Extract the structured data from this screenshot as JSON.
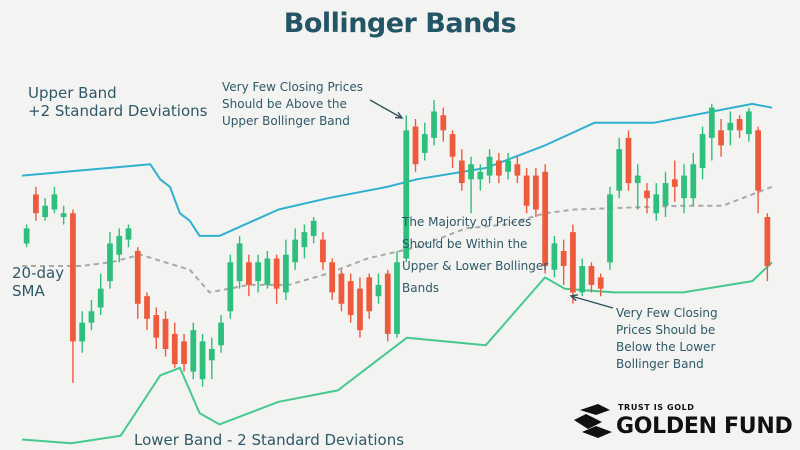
{
  "title": "Bollinger Bands",
  "labels": {
    "upper_line1": "Upper Band",
    "upper_line2": "+2 Standard Deviations",
    "sma_line1": "20-day",
    "sma_line2": "SMA",
    "lower": "Lower Band - 2 Standard Deviations"
  },
  "annotations": {
    "top": [
      "Very Few Closing Prices",
      "Should be Above the",
      "Upper Bollinger Band"
    ],
    "middle": [
      "The Majority of Prices",
      "Should be Within the",
      "Upper & Lower Bollinger",
      "Bands"
    ],
    "bottom": [
      "Very Few Closing",
      "Prices Should be",
      "Below the Lower",
      "Bollinger Band"
    ]
  },
  "logo": {
    "tagline": "TRUST IS GOLD",
    "name": "GOLDEN FUND"
  },
  "colors": {
    "up": "#2dbf7b",
    "down": "#ee5a3c",
    "upper_band": "#2fb0cf",
    "lower_band": "#45c98d",
    "sma": "#a8a8a8",
    "text": "#2f5968",
    "title": "#245566"
  },
  "chart_data": {
    "type": "candlestick",
    "ylim": [
      0,
      100
    ],
    "xlim": [
      0,
      76
    ],
    "upper_band": [
      [
        0,
        72
      ],
      [
        13,
        75
      ],
      [
        14,
        71
      ],
      [
        15,
        69
      ],
      [
        16,
        62
      ],
      [
        17,
        60
      ],
      [
        18,
        56
      ],
      [
        20,
        56
      ],
      [
        26,
        63
      ],
      [
        31,
        66
      ],
      [
        37,
        69
      ],
      [
        40,
        71
      ],
      [
        47,
        74
      ],
      [
        48,
        75
      ],
      [
        53,
        80
      ],
      [
        58,
        86
      ],
      [
        64,
        86
      ],
      [
        74,
        91
      ],
      [
        76,
        90
      ]
    ],
    "lower_band": [
      [
        0,
        2
      ],
      [
        5,
        1
      ],
      [
        10,
        3
      ],
      [
        14,
        19
      ],
      [
        16,
        21
      ],
      [
        18,
        9
      ],
      [
        20,
        6
      ],
      [
        26,
        12
      ],
      [
        32,
        15
      ],
      [
        39,
        29
      ],
      [
        47,
        27
      ],
      [
        53,
        45
      ],
      [
        55,
        42
      ],
      [
        60,
        41
      ],
      [
        67,
        41
      ],
      [
        74,
        44
      ],
      [
        76,
        49
      ]
    ],
    "sma": [
      [
        0,
        48
      ],
      [
        6,
        48
      ],
      [
        9,
        49
      ],
      [
        12,
        51
      ],
      [
        17,
        47
      ],
      [
        19,
        41
      ],
      [
        23,
        43
      ],
      [
        27,
        43
      ],
      [
        31,
        46
      ],
      [
        35,
        50
      ],
      [
        40,
        53
      ],
      [
        45,
        58
      ],
      [
        49,
        59
      ],
      [
        53,
        62
      ],
      [
        56,
        63
      ],
      [
        67,
        64
      ],
      [
        71,
        64
      ],
      [
        73,
        66
      ],
      [
        76,
        69
      ]
    ],
    "candles": [
      {
        "o": 54,
        "c": 58,
        "h": 59,
        "l": 53
      },
      {
        "o": 67,
        "c": 62,
        "h": 69,
        "l": 60
      },
      {
        "o": 61,
        "c": 64,
        "h": 66,
        "l": 60
      },
      {
        "o": 63,
        "c": 67,
        "h": 69,
        "l": 62
      },
      {
        "o": 61,
        "c": 62,
        "h": 64,
        "l": 59
      },
      {
        "o": 62,
        "c": 28,
        "h": 63,
        "l": 17
      },
      {
        "o": 28,
        "c": 33,
        "h": 36,
        "l": 25
      },
      {
        "o": 33,
        "c": 36,
        "h": 39,
        "l": 31
      },
      {
        "o": 37,
        "c": 42,
        "h": 46,
        "l": 35
      },
      {
        "o": 44,
        "c": 54,
        "h": 57,
        "l": 42
      },
      {
        "o": 51,
        "c": 56,
        "h": 58,
        "l": 49
      },
      {
        "o": 55,
        "c": 58,
        "h": 59,
        "l": 53
      },
      {
        "o": 52,
        "c": 38,
        "h": 53,
        "l": 34
      },
      {
        "o": 40,
        "c": 34,
        "h": 41,
        "l": 31
      },
      {
        "o": 35,
        "c": 29,
        "h": 37,
        "l": 26
      },
      {
        "o": 34,
        "c": 26,
        "h": 36,
        "l": 24
      },
      {
        "o": 30,
        "c": 22,
        "h": 33,
        "l": 21
      },
      {
        "o": 28,
        "c": 22,
        "h": 30,
        "l": 20
      },
      {
        "o": 20,
        "c": 31,
        "h": 33,
        "l": 18
      },
      {
        "o": 18,
        "c": 28,
        "h": 30,
        "l": 16
      },
      {
        "o": 23,
        "c": 26,
        "h": 29,
        "l": 18
      },
      {
        "o": 27,
        "c": 33,
        "h": 35,
        "l": 25
      },
      {
        "o": 36,
        "c": 49,
        "h": 51,
        "l": 34
      },
      {
        "o": 44,
        "c": 54,
        "h": 56,
        "l": 42
      },
      {
        "o": 49,
        "c": 43,
        "h": 51,
        "l": 40
      },
      {
        "o": 44,
        "c": 49,
        "h": 51,
        "l": 41
      },
      {
        "o": 43,
        "c": 50,
        "h": 52,
        "l": 42
      },
      {
        "o": 50,
        "c": 42,
        "h": 51,
        "l": 38
      },
      {
        "o": 41,
        "c": 51,
        "h": 55,
        "l": 39
      },
      {
        "o": 49,
        "c": 55,
        "h": 58,
        "l": 47
      },
      {
        "o": 53,
        "c": 57,
        "h": 59,
        "l": 50
      },
      {
        "o": 56,
        "c": 60,
        "h": 61,
        "l": 54
      },
      {
        "o": 55,
        "c": 49,
        "h": 57,
        "l": 47
      },
      {
        "o": 49,
        "c": 41,
        "h": 50,
        "l": 39
      },
      {
        "o": 46,
        "c": 38,
        "h": 47,
        "l": 36
      },
      {
        "o": 44,
        "c": 35,
        "h": 46,
        "l": 33
      },
      {
        "o": 42,
        "c": 31,
        "h": 45,
        "l": 29
      },
      {
        "o": 45,
        "c": 36,
        "h": 46,
        "l": 34
      },
      {
        "o": 40,
        "c": 43,
        "h": 46,
        "l": 38
      },
      {
        "o": 46,
        "c": 30,
        "h": 47,
        "l": 28
      },
      {
        "o": 30,
        "c": 49,
        "h": 52,
        "l": 29
      },
      {
        "o": 50,
        "c": 84,
        "h": 88,
        "l": 49
      },
      {
        "o": 85,
        "c": 75,
        "h": 87,
        "l": 73
      },
      {
        "o": 78,
        "c": 83,
        "h": 86,
        "l": 76
      },
      {
        "o": 82,
        "c": 89,
        "h": 92,
        "l": 80
      },
      {
        "o": 88,
        "c": 84,
        "h": 90,
        "l": 81
      },
      {
        "o": 83,
        "c": 77,
        "h": 84,
        "l": 74
      },
      {
        "o": 76,
        "c": 70,
        "h": 79,
        "l": 68
      },
      {
        "o": 71,
        "c": 75,
        "h": 77,
        "l": 62
      },
      {
        "o": 71,
        "c": 73,
        "h": 75,
        "l": 68
      },
      {
        "o": 72,
        "c": 77,
        "h": 79,
        "l": 70
      },
      {
        "o": 76,
        "c": 72,
        "h": 78,
        "l": 70
      },
      {
        "o": 73,
        "c": 76,
        "h": 78,
        "l": 71
      },
      {
        "o": 75,
        "c": 72,
        "h": 77,
        "l": 70
      },
      {
        "o": 72,
        "c": 64,
        "h": 74,
        "l": 62
      },
      {
        "o": 72,
        "c": 63,
        "h": 74,
        "l": 61
      },
      {
        "o": 73,
        "c": 48,
        "h": 75,
        "l": 46
      },
      {
        "o": 47,
        "c": 54,
        "h": 56,
        "l": 45
      },
      {
        "o": 52,
        "c": 48,
        "h": 55,
        "l": 43
      },
      {
        "o": 57,
        "c": 41,
        "h": 59,
        "l": 38
      },
      {
        "o": 41,
        "c": 48,
        "h": 50,
        "l": 40
      },
      {
        "o": 48,
        "c": 43,
        "h": 49,
        "l": 41
      },
      {
        "o": 45,
        "c": 42,
        "h": 46,
        "l": 40
      },
      {
        "o": 49,
        "c": 67,
        "h": 69,
        "l": 47
      },
      {
        "o": 68,
        "c": 79,
        "h": 82,
        "l": 66
      },
      {
        "o": 82,
        "c": 70,
        "h": 84,
        "l": 68
      },
      {
        "o": 70,
        "c": 72,
        "h": 75,
        "l": 63
      },
      {
        "o": 68,
        "c": 66,
        "h": 70,
        "l": 62
      },
      {
        "o": 62,
        "c": 67,
        "h": 70,
        "l": 60
      },
      {
        "o": 64,
        "c": 70,
        "h": 73,
        "l": 61
      },
      {
        "o": 71,
        "c": 69,
        "h": 76,
        "l": 65
      },
      {
        "o": 66,
        "c": 72,
        "h": 75,
        "l": 62
      },
      {
        "o": 66,
        "c": 75,
        "h": 78,
        "l": 64
      },
      {
        "o": 74,
        "c": 83,
        "h": 85,
        "l": 71
      },
      {
        "o": 82,
        "c": 90,
        "h": 91,
        "l": 76
      },
      {
        "o": 84,
        "c": 80,
        "h": 87,
        "l": 77
      },
      {
        "o": 84,
        "c": 86,
        "h": 89,
        "l": 80
      },
      {
        "o": 87,
        "c": 84,
        "h": 88,
        "l": 82
      },
      {
        "o": 83,
        "c": 89,
        "h": 90,
        "l": 81
      },
      {
        "o": 84,
        "c": 68,
        "h": 85,
        "l": 62
      },
      {
        "o": 61,
        "c": 48,
        "h": 62,
        "l": 44
      }
    ]
  }
}
